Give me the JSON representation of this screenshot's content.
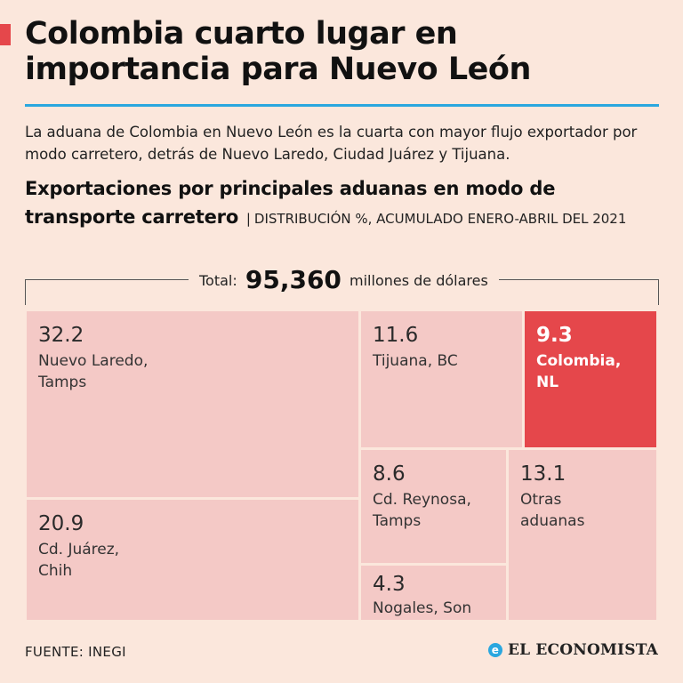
{
  "header": {
    "title": "Colombia cuarto lugar en importancia para Nuevo León",
    "subtitle": "La aduana de Colombia en Nuevo León es la cuarta con mayor flujo exportador por modo carretero, detrás de Nuevo Laredo, Ciudad Juárez y Tijuana.",
    "chart_title_bold": "Exportaciones por principales aduanas en modo de transporte carretero",
    "separator": "|",
    "chart_title_suffix": "DISTRIBUCIÓN %, ACUMULADO ENERO-ABRIL DEL 2021"
  },
  "total": {
    "label": "Total:",
    "value": "95,360",
    "unit": "millones de dólares"
  },
  "chart_data": {
    "type": "treemap",
    "unit": "%",
    "cells": [
      {
        "name": "Nuevo Laredo,\nTamps",
        "value": 32.2,
        "highlight": false
      },
      {
        "name": "Cd. Juárez,\nChih",
        "value": 20.9,
        "highlight": false
      },
      {
        "name": "Tijuana, BC",
        "value": 11.6,
        "highlight": false
      },
      {
        "name": "Colombia,\nNL",
        "value": 9.3,
        "highlight": true
      },
      {
        "name": "Cd. Reynosa,\nTamps",
        "value": 8.6,
        "highlight": false
      },
      {
        "name": "Nogales, Son",
        "value": 4.3,
        "highlight": false
      },
      {
        "name": "Otras\naduanas",
        "value": 13.1,
        "highlight": false
      }
    ]
  },
  "colors": {
    "background": "#fbe7dc",
    "tile": "#f4c9c6",
    "highlight": "#e5474b",
    "rule": "#2aa7df"
  },
  "footer": {
    "source": "FUENTE: INEGI",
    "logo_text": "EL ECONOMISTA",
    "logo_icon": "e-logo-icon"
  }
}
